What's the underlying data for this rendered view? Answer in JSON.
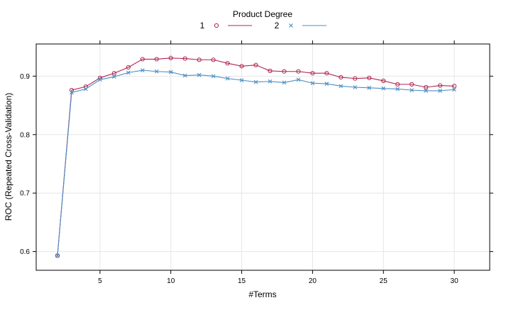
{
  "chart_data": {
    "type": "line",
    "title": "",
    "xlabel": "#Terms",
    "ylabel": "ROC (Repeated Cross-Validation)",
    "legend_title": "Product Degree",
    "legend_position": "top",
    "grid": true,
    "xlim": [
      0.5,
      32.5
    ],
    "ylim": [
      0.568,
      0.955
    ],
    "x_ticks": [
      5,
      10,
      15,
      20,
      25,
      30
    ],
    "y_ticks": [
      0.6,
      0.7,
      0.8,
      0.9
    ],
    "x": [
      2,
      3,
      4,
      5,
      6,
      7,
      8,
      9,
      10,
      11,
      12,
      13,
      14,
      15,
      16,
      17,
      18,
      19,
      20,
      21,
      22,
      23,
      24,
      25,
      26,
      27,
      28,
      29,
      30
    ],
    "series": [
      {
        "name": "1",
        "marker": "circle",
        "color": "#b2244d",
        "values": [
          0.593,
          0.876,
          0.882,
          0.897,
          0.905,
          0.915,
          0.929,
          0.929,
          0.931,
          0.93,
          0.928,
          0.928,
          0.922,
          0.917,
          0.919,
          0.909,
          0.908,
          0.908,
          0.905,
          0.905,
          0.898,
          0.896,
          0.897,
          0.892,
          0.886,
          0.886,
          0.881,
          0.884,
          0.883
        ]
      },
      {
        "name": "2",
        "marker": "cross",
        "color": "#4a8fc4",
        "values": [
          0.593,
          0.872,
          0.878,
          0.894,
          0.899,
          0.906,
          0.91,
          0.908,
          0.907,
          0.901,
          0.902,
          0.9,
          0.896,
          0.893,
          0.89,
          0.891,
          0.889,
          0.894,
          0.888,
          0.887,
          0.883,
          0.881,
          0.88,
          0.879,
          0.878,
          0.876,
          0.875,
          0.875,
          0.877
        ]
      }
    ]
  }
}
